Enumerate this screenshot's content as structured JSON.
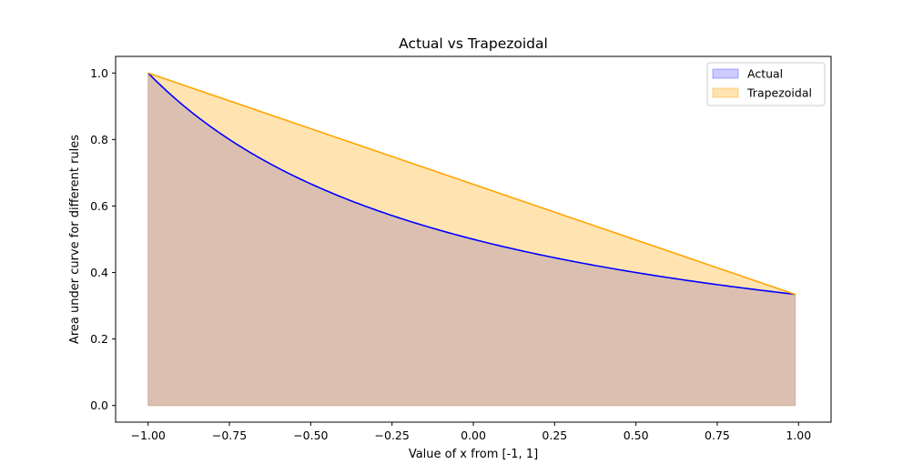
{
  "chart_data": {
    "type": "area",
    "title": "Actual vs Trapezoidal",
    "xlabel": "Value of x from [-1, 1]",
    "ylabel": "Area under curve for different rules",
    "xlim": [
      -1.1,
      1.1
    ],
    "ylim": [
      -0.05,
      1.05
    ],
    "xticks": [
      -1.0,
      -0.75,
      -0.5,
      -0.25,
      0.0,
      0.25,
      0.5,
      0.75,
      1.0
    ],
    "xtick_labels": [
      "−1.00",
      "−0.75",
      "−0.50",
      "−0.25",
      "0.00",
      "0.25",
      "0.50",
      "0.75",
      "1.00"
    ],
    "yticks": [
      0.0,
      0.2,
      0.4,
      0.6,
      0.8,
      1.0
    ],
    "ytick_labels": [
      "0.0",
      "0.2",
      "0.4",
      "0.6",
      "0.8",
      "1.0"
    ],
    "grid": false,
    "legend_position": "top-right",
    "series": [
      {
        "name": "Actual",
        "function": "1/(2+x)",
        "x": [
          -1.0,
          -0.9,
          -0.8,
          -0.7,
          -0.6,
          -0.5,
          -0.4,
          -0.3,
          -0.2,
          -0.1,
          0.0,
          0.1,
          0.2,
          0.3,
          0.4,
          0.5,
          0.6,
          0.7,
          0.8,
          0.9,
          0.99
        ],
        "y": [
          1.0,
          0.909,
          0.833,
          0.769,
          0.714,
          0.667,
          0.625,
          0.588,
          0.556,
          0.526,
          0.5,
          0.476,
          0.455,
          0.435,
          0.417,
          0.4,
          0.385,
          0.37,
          0.357,
          0.345,
          0.334
        ],
        "line_color": "#0000ff",
        "fill_color": "#0000ff",
        "fill_alpha": 0.2
      },
      {
        "name": "Trapezoidal",
        "x": [
          -1.0,
          0.99
        ],
        "y": [
          1.0,
          0.334
        ],
        "line_color": "#ffa500",
        "fill_color": "#ffa500",
        "fill_alpha": 0.3
      }
    ]
  }
}
